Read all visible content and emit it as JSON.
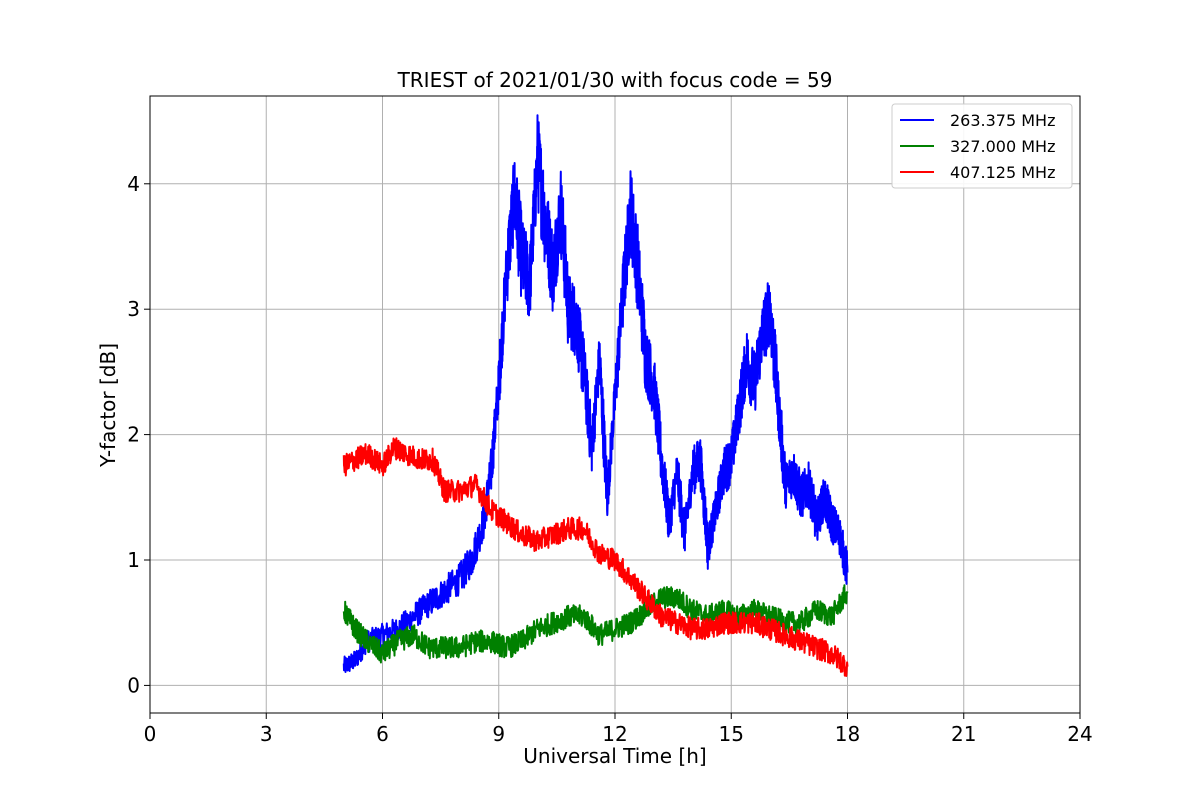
{
  "chart_data": {
    "type": "line",
    "title": "TRIEST of 2021/01/30 with focus code = 59",
    "xlabel": "Universal Time [h]",
    "ylabel": "Y-factor [dB]",
    "xlim": [
      0,
      24
    ],
    "ylim": [
      -0.22,
      4.7
    ],
    "xticks": [
      0,
      3,
      6,
      9,
      12,
      15,
      18,
      21,
      24
    ],
    "yticks": [
      0,
      1,
      2,
      3,
      4
    ],
    "grid": true,
    "legend_position": "top-right",
    "series": [
      {
        "name": "263.375 MHz",
        "color": "#0000ff",
        "x": [
          5.0,
          5.3,
          5.6,
          6.0,
          6.4,
          6.8,
          7.2,
          7.6,
          8.0,
          8.3,
          8.6,
          8.8,
          9.0,
          9.2,
          9.4,
          9.6,
          9.8,
          10.0,
          10.2,
          10.4,
          10.6,
          10.8,
          11.0,
          11.2,
          11.4,
          11.6,
          11.8,
          12.0,
          12.2,
          12.4,
          12.6,
          12.8,
          13.0,
          13.2,
          13.4,
          13.6,
          13.8,
          14.0,
          14.2,
          14.4,
          14.6,
          14.8,
          15.0,
          15.2,
          15.4,
          15.6,
          15.8,
          16.0,
          16.2,
          16.4,
          16.6,
          16.8,
          17.0,
          17.2,
          17.4,
          17.6,
          17.8,
          18.0
        ],
        "y": [
          0.15,
          0.2,
          0.35,
          0.4,
          0.45,
          0.55,
          0.65,
          0.75,
          0.85,
          1.0,
          1.3,
          1.7,
          2.4,
          3.3,
          3.9,
          3.4,
          3.2,
          4.2,
          3.7,
          3.3,
          3.8,
          3.0,
          2.9,
          2.5,
          1.9,
          2.6,
          1.5,
          2.3,
          3.1,
          3.8,
          3.3,
          2.6,
          2.4,
          1.8,
          1.3,
          1.7,
          1.2,
          1.7,
          1.8,
          1.1,
          1.4,
          1.7,
          1.8,
          2.2,
          2.6,
          2.4,
          2.8,
          3.0,
          2.3,
          1.6,
          1.7,
          1.5,
          1.6,
          1.3,
          1.5,
          1.3,
          1.2,
          0.9
        ]
      },
      {
        "name": "327.000 MHz",
        "color": "#008000",
        "x": [
          5.0,
          5.3,
          5.6,
          6.0,
          6.4,
          6.8,
          7.2,
          7.6,
          8.0,
          8.4,
          8.8,
          9.2,
          9.6,
          10.0,
          10.4,
          10.8,
          11.2,
          11.6,
          12.0,
          12.4,
          12.8,
          13.2,
          13.6,
          14.0,
          14.4,
          14.8,
          15.2,
          15.6,
          16.0,
          16.4,
          16.8,
          17.2,
          17.6,
          18.0
        ],
        "y": [
          0.6,
          0.45,
          0.35,
          0.25,
          0.35,
          0.4,
          0.3,
          0.3,
          0.3,
          0.35,
          0.35,
          0.3,
          0.35,
          0.45,
          0.5,
          0.55,
          0.55,
          0.4,
          0.45,
          0.5,
          0.6,
          0.7,
          0.7,
          0.6,
          0.55,
          0.6,
          0.55,
          0.6,
          0.55,
          0.5,
          0.5,
          0.6,
          0.55,
          0.75
        ]
      },
      {
        "name": "407.125 MHz",
        "color": "#ff0000",
        "x": [
          5.0,
          5.3,
          5.6,
          6.0,
          6.3,
          6.6,
          7.0,
          7.3,
          7.6,
          8.0,
          8.4,
          8.8,
          9.2,
          9.6,
          10.0,
          10.4,
          10.8,
          11.2,
          11.6,
          12.0,
          12.4,
          12.8,
          13.2,
          13.6,
          14.0,
          14.4,
          14.8,
          15.2,
          15.6,
          16.0,
          16.4,
          16.8,
          17.2,
          17.6,
          18.0
        ],
        "y": [
          1.75,
          1.8,
          1.85,
          1.75,
          1.9,
          1.85,
          1.8,
          1.8,
          1.55,
          1.55,
          1.6,
          1.4,
          1.3,
          1.2,
          1.15,
          1.2,
          1.25,
          1.25,
          1.05,
          1.0,
          0.85,
          0.7,
          0.55,
          0.5,
          0.45,
          0.45,
          0.5,
          0.5,
          0.5,
          0.45,
          0.4,
          0.35,
          0.3,
          0.25,
          0.15
        ]
      }
    ]
  }
}
